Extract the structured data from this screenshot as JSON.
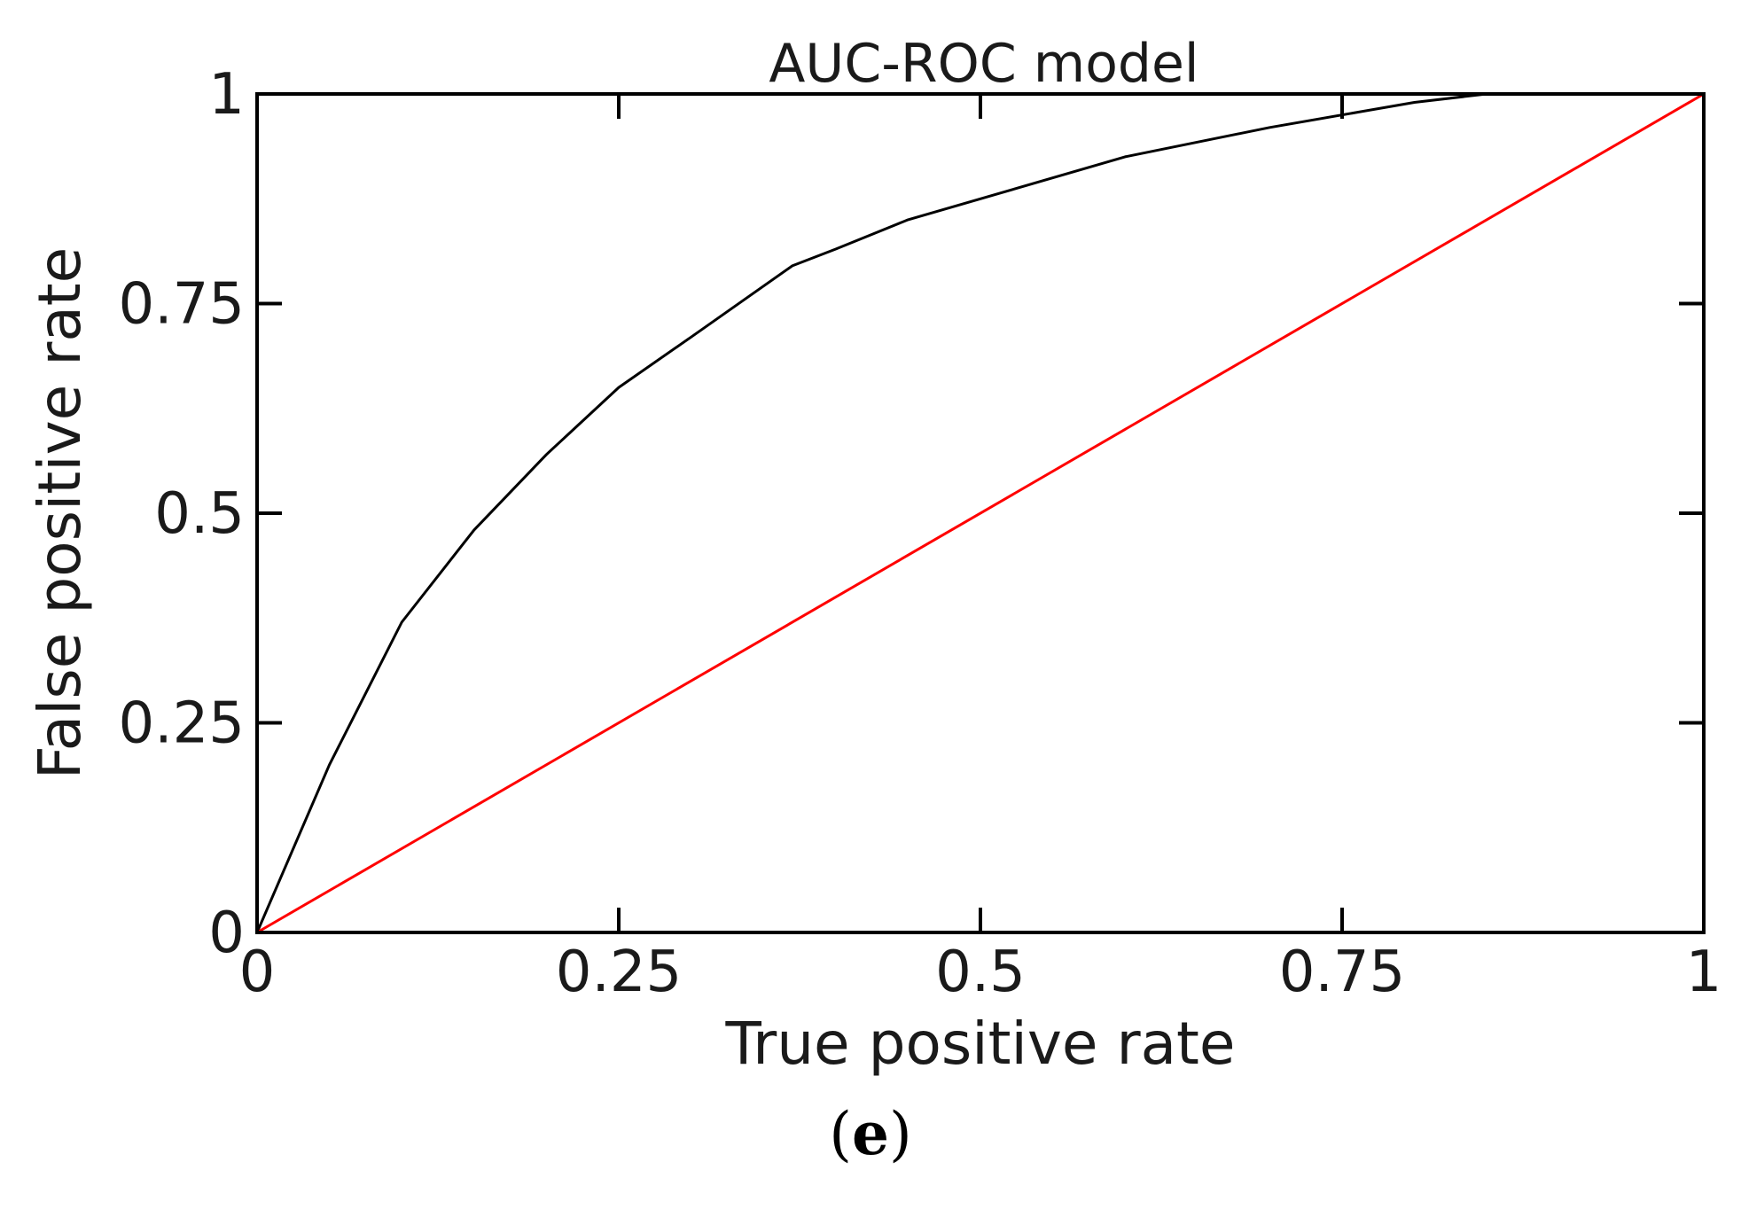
{
  "chart_data": {
    "type": "line",
    "title": "AUC-ROC model",
    "xlabel": "True positive rate",
    "ylabel": "False positive rate",
    "xlim": [
      0,
      1
    ],
    "ylim": [
      0,
      1
    ],
    "x_ticks": [
      0,
      0.25,
      0.5,
      0.75,
      1
    ],
    "y_ticks": [
      0,
      0.25,
      0.5,
      0.75,
      1
    ],
    "x_tick_labels": [
      "0",
      "0.25",
      "0.5",
      "0.75",
      "1"
    ],
    "y_tick_labels": [
      "0",
      "0.25",
      "0.5",
      "0.75",
      "1"
    ],
    "grid": false,
    "legend": "none",
    "series": [
      {
        "color": "#000000",
        "points": [
          [
            0,
            0
          ],
          [
            0.05,
            0.2
          ],
          [
            0.1,
            0.37
          ],
          [
            0.15,
            0.48
          ],
          [
            0.2,
            0.57
          ],
          [
            0.25,
            0.65
          ],
          [
            0.3,
            0.71
          ],
          [
            0.37,
            0.795
          ],
          [
            0.4,
            0.815
          ],
          [
            0.45,
            0.85
          ],
          [
            0.5,
            0.875
          ],
          [
            0.6,
            0.925
          ],
          [
            0.7,
            0.96
          ],
          [
            0.8,
            0.99
          ],
          [
            0.85,
            1.0
          ],
          [
            1.0,
            1.0
          ]
        ]
      },
      {
        "color": "#ff0000",
        "points": [
          [
            0,
            0
          ],
          [
            1,
            1
          ]
        ]
      }
    ]
  },
  "panel_label": {
    "open": "(",
    "letter": "e",
    "close": ")"
  }
}
